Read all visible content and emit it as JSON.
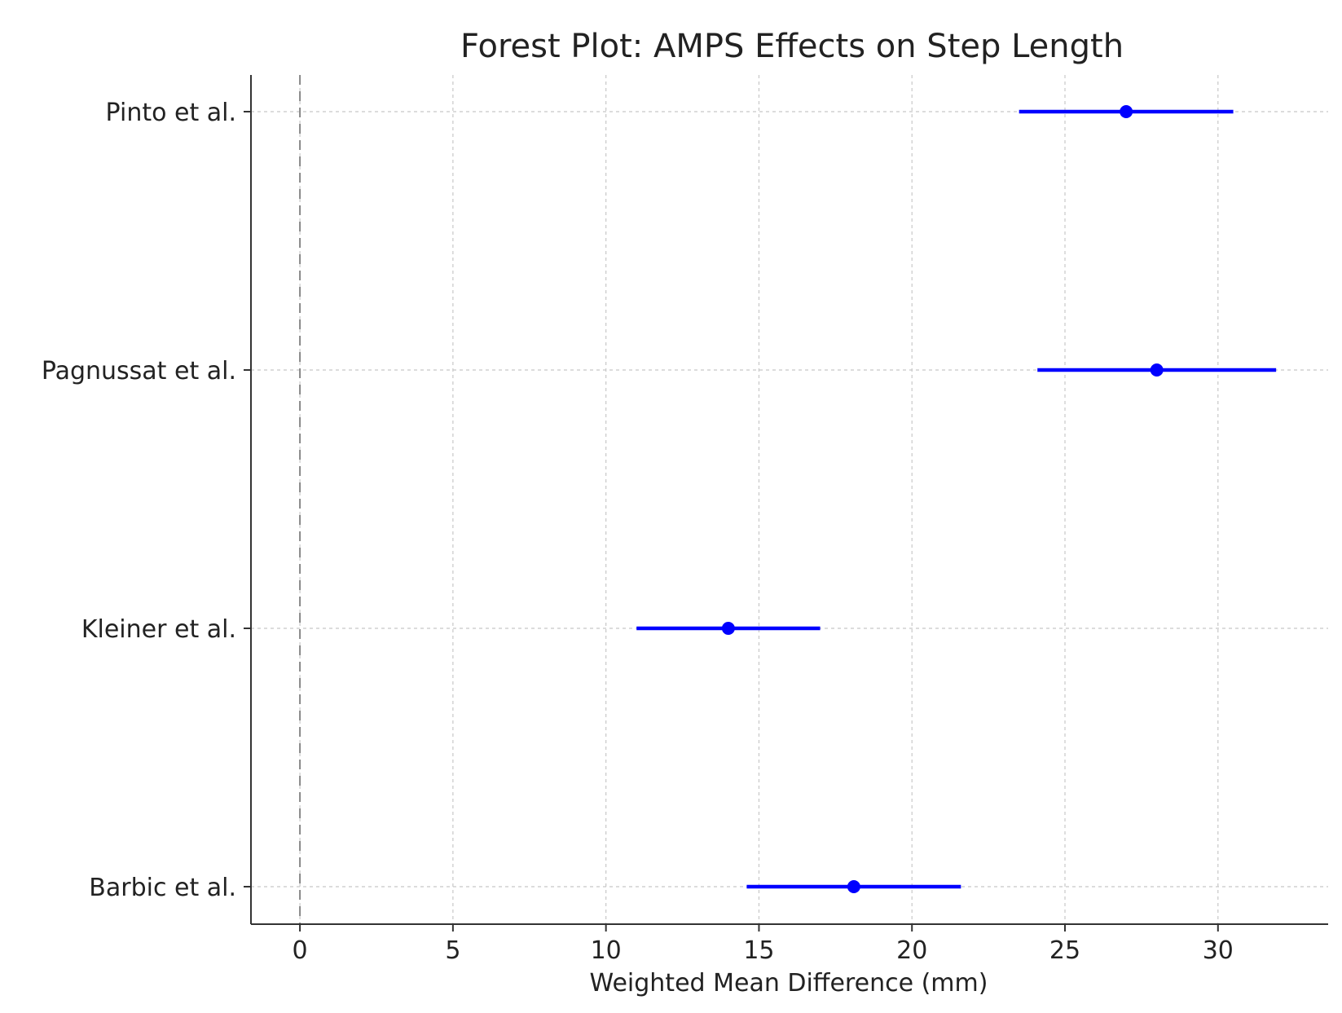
{
  "chart_data": {
    "type": "forest",
    "title": "Forest Plot: AMPS Effects on Step Length",
    "xlabel": "Weighted Mean Difference (mm)",
    "ylabel": "",
    "xlim": [
      -1.6,
      33.6
    ],
    "xticks": [
      0,
      5,
      10,
      15,
      20,
      25,
      30
    ],
    "grid": true,
    "reference_line": 0,
    "color": "#0000ff",
    "studies": [
      {
        "label": "Pinto et al.",
        "estimate": 27.0,
        "ci_low": 23.5,
        "ci_high": 30.5
      },
      {
        "label": "Pagnussat et al.",
        "estimate": 28.0,
        "ci_low": 24.1,
        "ci_high": 31.9
      },
      {
        "label": "Kleiner et al.",
        "estimate": 14.0,
        "ci_low": 11.0,
        "ci_high": 17.0
      },
      {
        "label": "Barbic et al.",
        "estimate": 18.1,
        "ci_low": 14.6,
        "ci_high": 21.6
      }
    ]
  }
}
